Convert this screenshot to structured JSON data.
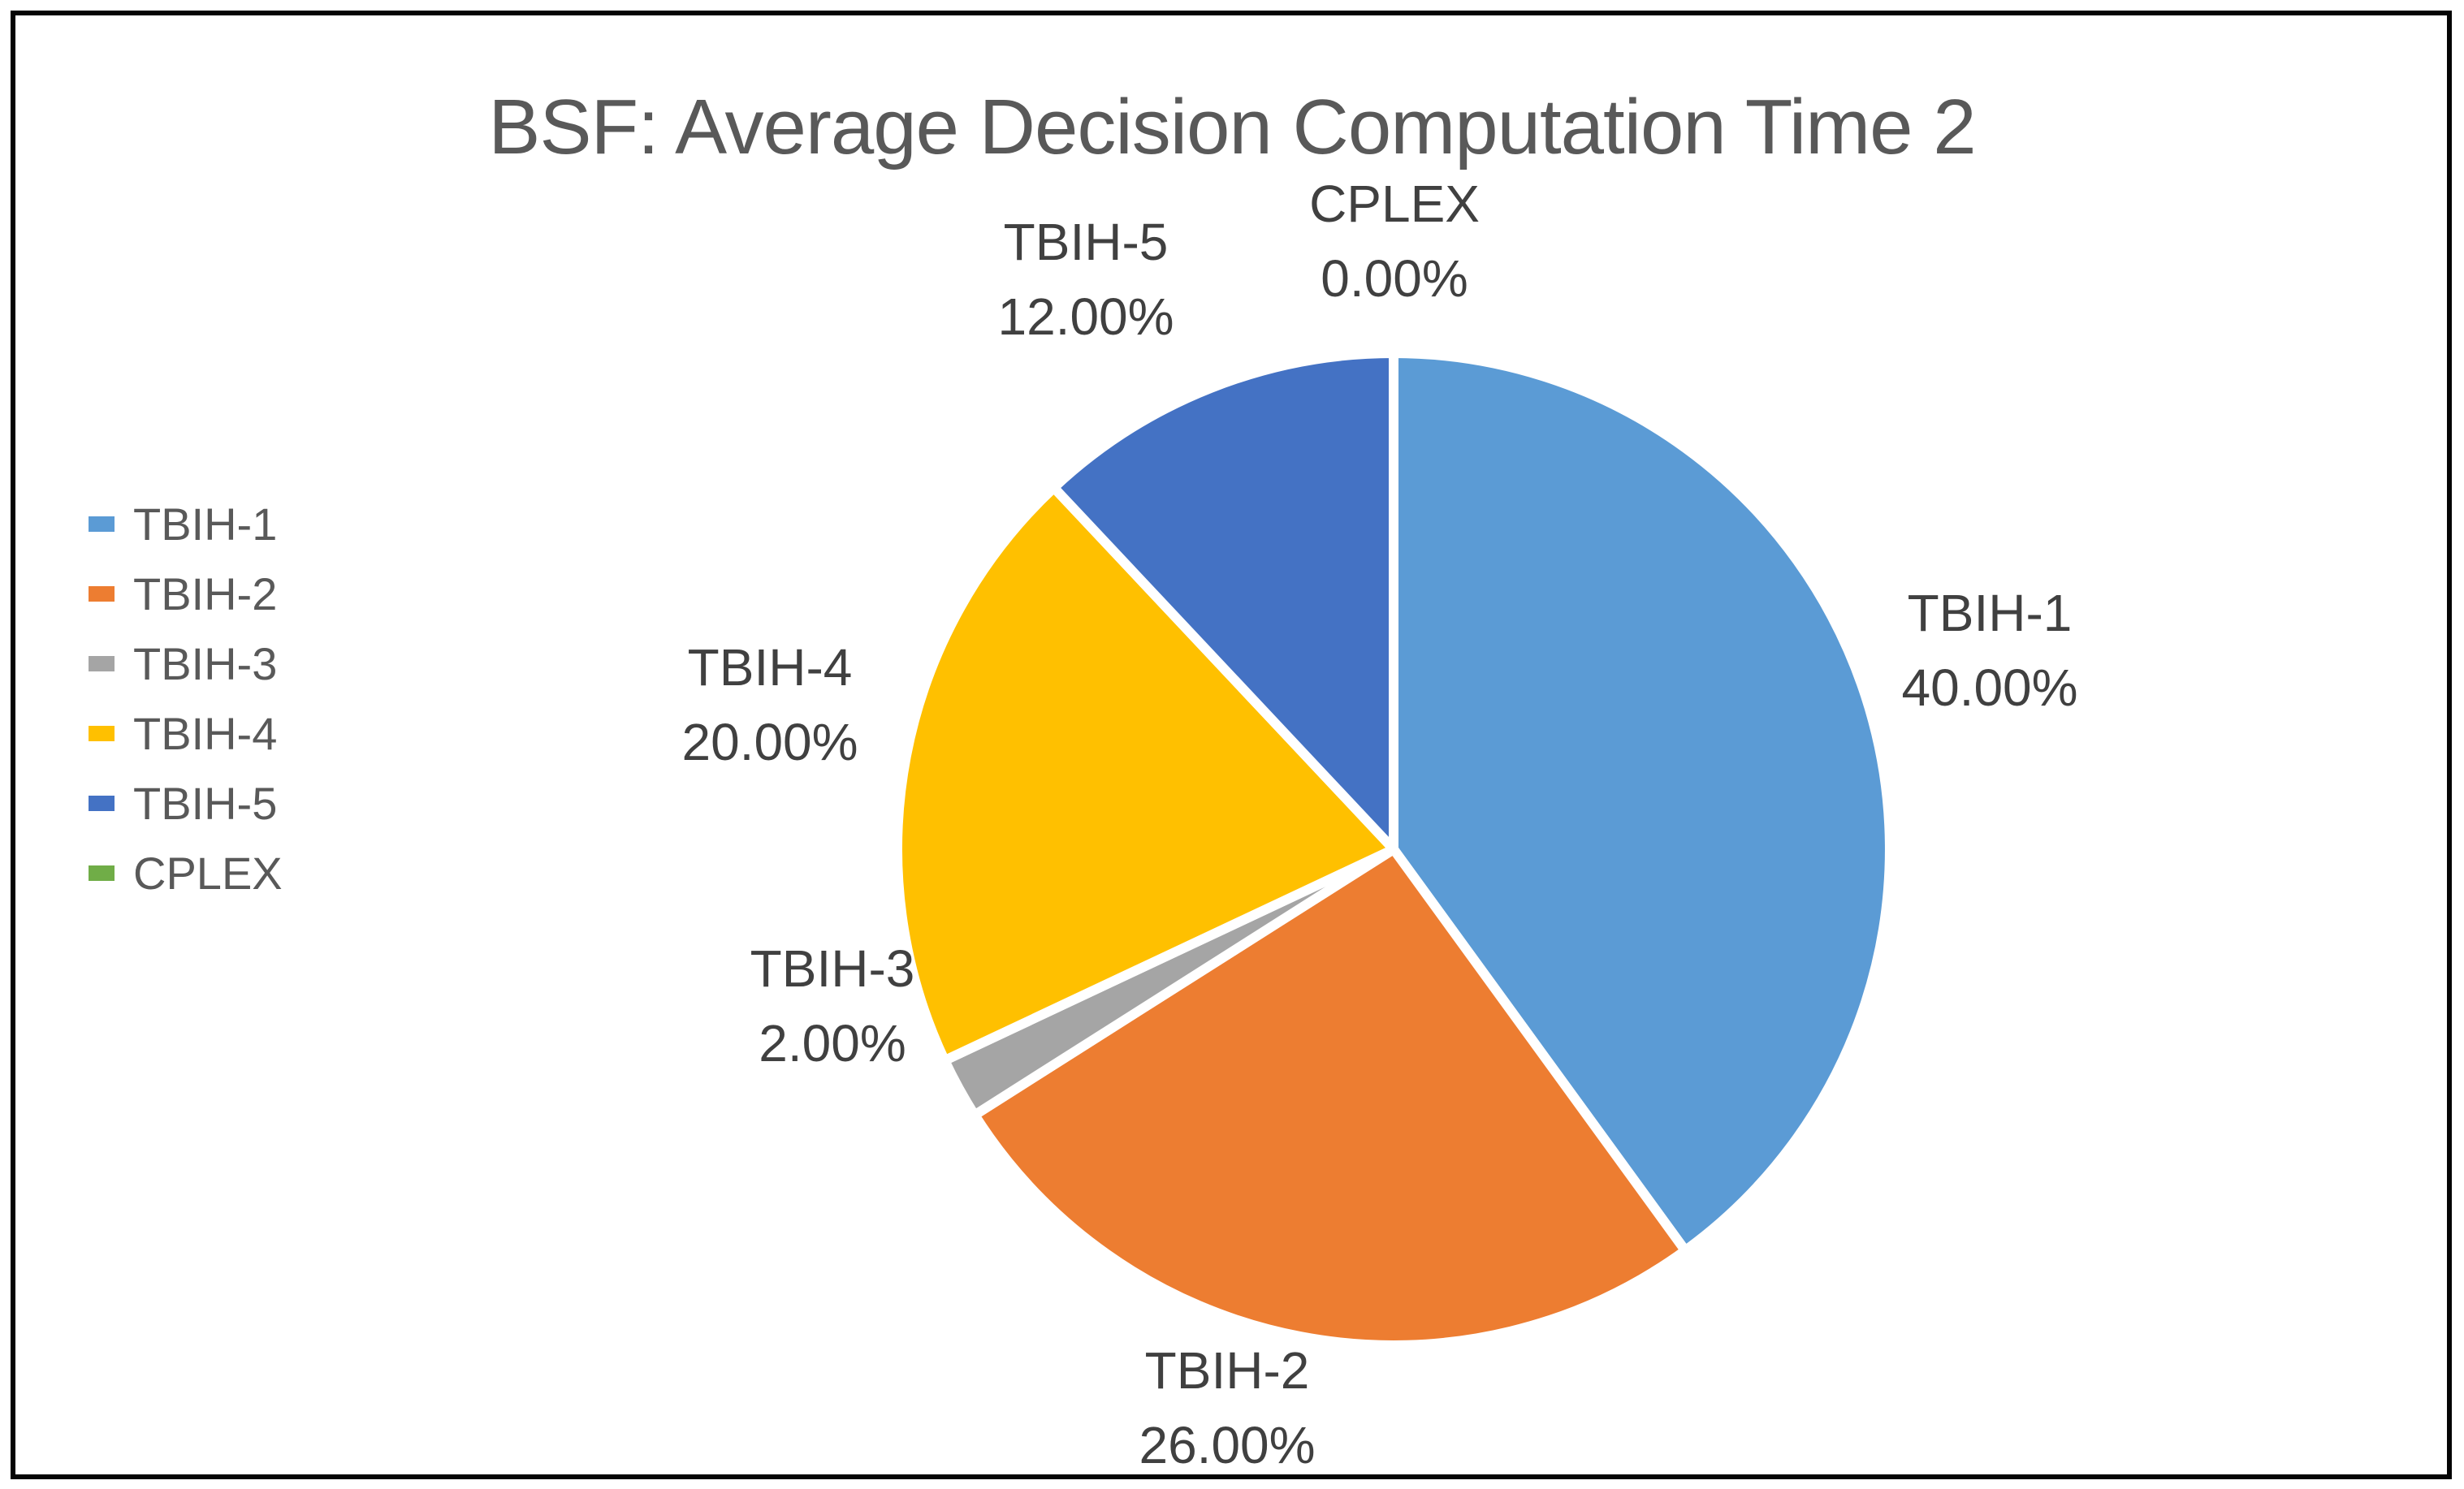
{
  "title": "BSF: Average Decision Computation Time 2",
  "colors": {
    "background": "#FFFFFF",
    "frame_border": "#050505",
    "title_text": "#595959",
    "legend_text": "#595959",
    "label_text": "#404040",
    "slice_separator": "#FFFFFF"
  },
  "chart_data": {
    "type": "pie",
    "title": "BSF: Average Decision Computation Time 2",
    "legend_position": "left",
    "start_angle_deg": 0,
    "direction": "clockwise",
    "data_label_format": "name + percent, 2 decimals",
    "slices": [
      {
        "label": "TBIH-1",
        "value": 40.0,
        "pct_label": "40.00%",
        "color": "#5B9BD5"
      },
      {
        "label": "TBIH-2",
        "value": 26.0,
        "pct_label": "26.00%",
        "color": "#ED7D31"
      },
      {
        "label": "TBIH-3",
        "value": 2.0,
        "pct_label": "2.00%",
        "color": "#A5A5A5"
      },
      {
        "label": "TBIH-4",
        "value": 20.0,
        "pct_label": "20.00%",
        "color": "#FFC000"
      },
      {
        "label": "TBIH-5",
        "value": 12.0,
        "pct_label": "12.00%",
        "color": "#4472C4"
      },
      {
        "label": "CPLEX",
        "value": 0.0,
        "pct_label": "0.00%",
        "color": "#70AD47"
      }
    ],
    "legend": [
      "TBIH-1",
      "TBIH-2",
      "TBIH-3",
      "TBIH-4",
      "TBIH-5",
      "CPLEX"
    ]
  }
}
